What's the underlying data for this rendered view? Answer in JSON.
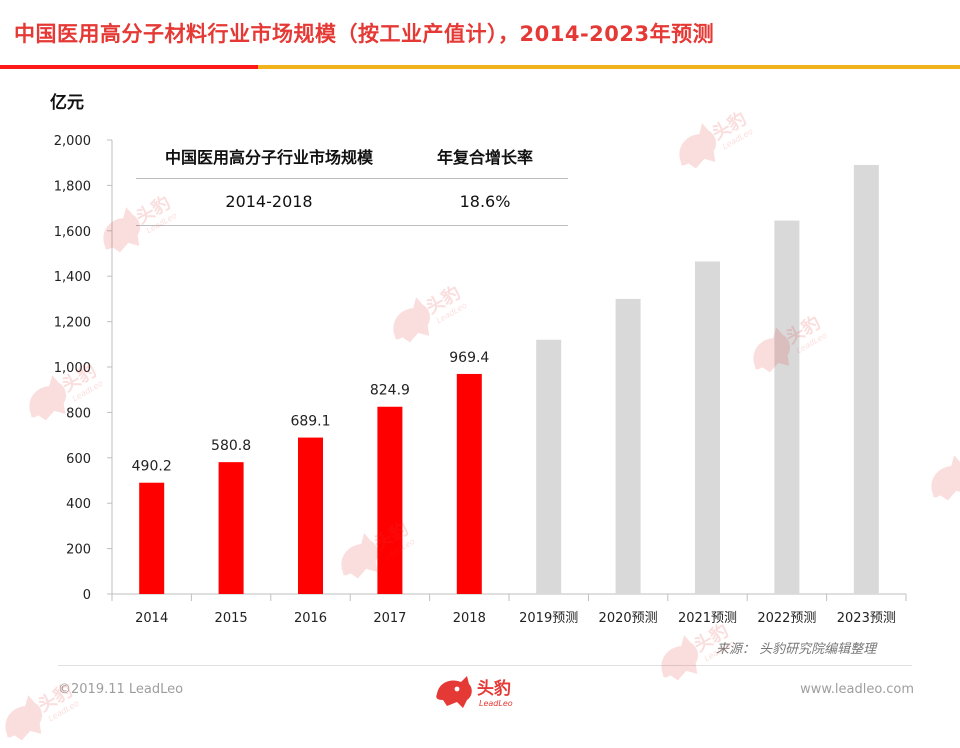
{
  "title": "中国医用高分子材料行业市场规模（按工业产值计），2014-2023年预测",
  "unit_label": "亿元",
  "cagr_table": {
    "headers": [
      "中国医用高分子行业市场规模",
      "年复合增长率"
    ],
    "period": "2014-2018",
    "rate": "18.6%"
  },
  "source": "来源：  头豹研究院编辑整理",
  "footer": {
    "copyright": "©2019.11 LeadLeo",
    "url": "www.leadleo.com",
    "logo_text": "头豹",
    "logo_subtext": "LeadLeo"
  },
  "watermark": {
    "text": "头豹",
    "subtext": "LeadLeo"
  },
  "colors": {
    "title": "#e53935",
    "accent_red": "#ff1a1a",
    "accent_yellow": "#f2b21b",
    "actual_bar": "#ff0000",
    "forecast_bar": "#d9d9d9",
    "axis": "#bfbfbf",
    "watermark": "#e53935"
  },
  "chart_data": {
    "type": "bar",
    "categories": [
      "2014",
      "2015",
      "2016",
      "2017",
      "2018",
      "2019预测",
      "2020预测",
      "2021预测",
      "2022预测",
      "2023预测"
    ],
    "values": [
      490.2,
      580.8,
      689.1,
      824.9,
      969.4,
      1120,
      1300,
      1465,
      1645,
      1890
    ],
    "value_labels": [
      "490.2",
      "580.8",
      "689.1",
      "824.9",
      "969.4",
      "",
      "",
      "",
      "",
      ""
    ],
    "forecast": [
      false,
      false,
      false,
      false,
      false,
      true,
      true,
      true,
      true,
      true
    ],
    "ylabel": "亿元",
    "ylim": [
      0,
      2000
    ],
    "yticks": [
      0,
      200,
      400,
      600,
      800,
      1000,
      1200,
      1400,
      1600,
      1800,
      2000
    ],
    "ytick_labels": [
      "0",
      "200",
      "400",
      "600",
      "800",
      "1,000",
      "1,200",
      "1,400",
      "1,600",
      "1,800",
      "2,000"
    ],
    "grid": false,
    "legend": "none"
  }
}
